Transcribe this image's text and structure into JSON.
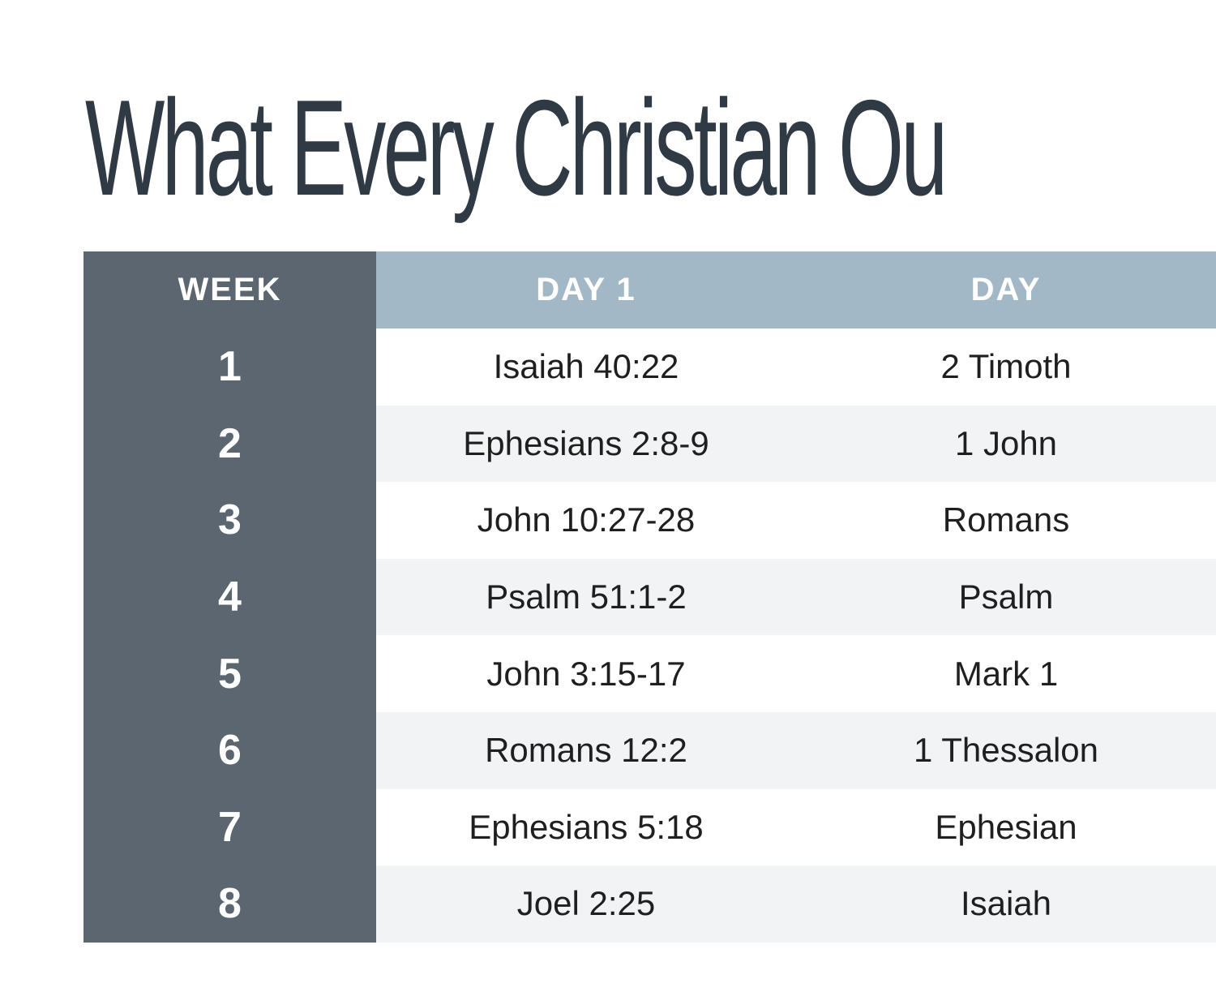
{
  "title": "What Every Christian Ou",
  "table": {
    "headers": [
      "WEEK",
      "DAY 1",
      "DAY"
    ],
    "rows": [
      {
        "week": "1",
        "day1": "Isaiah 40:22",
        "day2": "2 Timoth"
      },
      {
        "week": "2",
        "day1": "Ephesians 2:8-9",
        "day2": "1 John"
      },
      {
        "week": "3",
        "day1": "John 10:27-28",
        "day2": "Romans"
      },
      {
        "week": "4",
        "day1": "Psalm 51:1-2",
        "day2": "Psalm"
      },
      {
        "week": "5",
        "day1": "John 3:15-17",
        "day2": "Mark 1"
      },
      {
        "week": "6",
        "day1": "Romans 12:2",
        "day2": "1 Thessalon"
      },
      {
        "week": "7",
        "day1": "Ephesians 5:18",
        "day2": "Ephesian"
      },
      {
        "week": "8",
        "day1": "Joel 2:25",
        "day2": "Isaiah"
      }
    ]
  },
  "colors": {
    "title": "#2f3a45",
    "week_column": "#5b6670",
    "day_header": "#a3b8c6",
    "row_alt": "#f2f3f5"
  }
}
